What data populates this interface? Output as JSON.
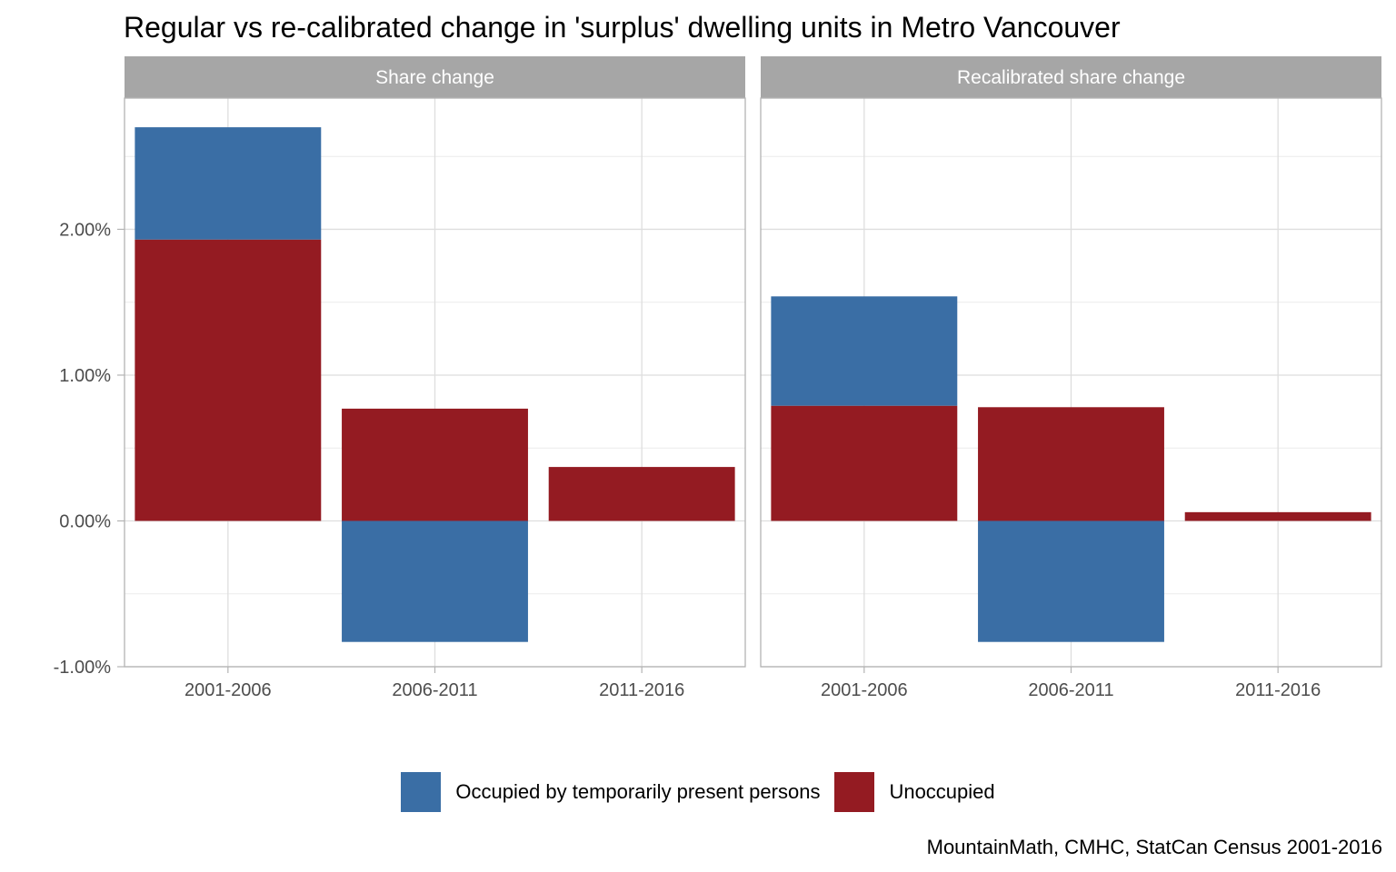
{
  "chart_data": {
    "type": "bar",
    "stacked": true,
    "title": "Regular vs re-calibrated change in 'surplus' dwelling units in Metro Vancouver",
    "caption": "MountainMath, CMHC, StatCan Census 2001-2016",
    "categories": [
      "2001-2006",
      "2006-2011",
      "2011-2016"
    ],
    "ylim": [
      -1.0,
      2.9
    ],
    "yticks": [
      -1.0,
      0.0,
      1.0,
      2.0
    ],
    "ytick_labels": [
      "-1.00%",
      "0.00%",
      "1.00%",
      "2.00%"
    ],
    "grid": true,
    "legend_position": "bottom",
    "legend": [
      {
        "name": "Occupied by temporarily present persons",
        "color": "#3a6ea5"
      },
      {
        "name": "Unoccupied",
        "color": "#941b22"
      }
    ],
    "panels": [
      {
        "strip_label": "Share change",
        "series": [
          {
            "name": "Unoccupied",
            "values": [
              1.93,
              0.77,
              0.37
            ]
          },
          {
            "name": "Occupied by temporarily present persons",
            "values": [
              0.77,
              -0.83,
              0.0
            ]
          }
        ]
      },
      {
        "strip_label": "Recalibrated share change",
        "series": [
          {
            "name": "Unoccupied",
            "values": [
              0.79,
              0.78,
              0.06
            ]
          },
          {
            "name": "Occupied by temporarily present persons",
            "values": [
              0.75,
              -0.83,
              0.0
            ]
          }
        ]
      }
    ]
  }
}
